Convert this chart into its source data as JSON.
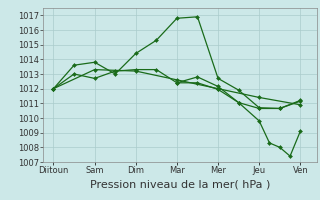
{
  "title": "",
  "xlabel": "Pression niveau de la mer( hPa )",
  "ylabel": "",
  "bg_color": "#cce8e8",
  "grid_color": "#aacccc",
  "line_color": "#1a6b1a",
  "ylim": [
    1007,
    1017.5
  ],
  "yticks": [
    1007,
    1008,
    1009,
    1010,
    1011,
    1012,
    1013,
    1014,
    1015,
    1016,
    1017
  ],
  "x_labels": [
    "Diitoun",
    "Sam",
    "Dim",
    "Mar",
    "Mer",
    "Jeu",
    "Ven"
  ],
  "x_positions": [
    0,
    2,
    4,
    6,
    8,
    10,
    12
  ],
  "lines": [
    {
      "x": [
        0,
        1,
        2,
        3,
        4,
        5,
        6,
        7,
        8,
        9,
        10,
        11,
        12
      ],
      "y": [
        1012.0,
        1013.6,
        1013.8,
        1013.0,
        1014.4,
        1015.3,
        1016.8,
        1016.9,
        1012.7,
        1011.9,
        1010.7,
        1010.65,
        1011.2
      ]
    },
    {
      "x": [
        0,
        1,
        2,
        3,
        4,
        5,
        6,
        7,
        8,
        9,
        10,
        11,
        12
      ],
      "y": [
        1012.0,
        1013.0,
        1012.7,
        1013.2,
        1013.3,
        1013.3,
        1012.4,
        1012.4,
        1011.95,
        1011.05,
        1010.65,
        1010.65,
        1011.15
      ]
    },
    {
      "x": [
        0,
        2,
        4,
        6,
        8,
        10,
        12
      ],
      "y": [
        1012.0,
        1013.3,
        1013.2,
        1012.6,
        1012.0,
        1011.4,
        1010.9
      ]
    },
    {
      "x": [
        6,
        7,
        8,
        9,
        10,
        10.5,
        11,
        11.5,
        12
      ],
      "y": [
        1012.4,
        1012.8,
        1012.15,
        1011.05,
        1009.8,
        1008.3,
        1008.0,
        1007.4,
        1009.1
      ]
    }
  ],
  "marker": "D",
  "markersize": 2.0,
  "linewidth": 0.9,
  "xlabel_fontsize": 8,
  "tick_fontsize": 6
}
